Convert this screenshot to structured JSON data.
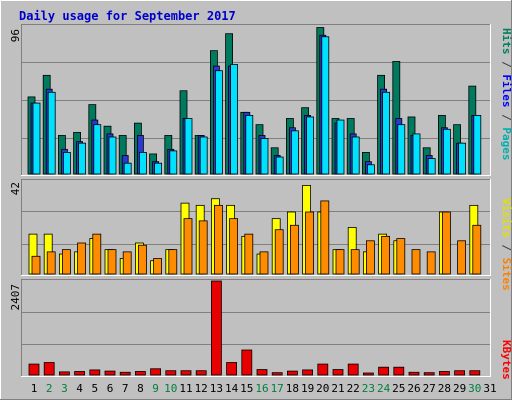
{
  "title": "Daily usage for September 2017",
  "colors": {
    "title": "#0000cc",
    "pages": "#00b0b0",
    "files": "#0000ff",
    "hits": "#008060",
    "sites": "#ff8000",
    "visits": "#e0e000",
    "kbytes": "#ff0000",
    "weekday_label": "#000000",
    "weekend_label": "#008040",
    "bar_hits": "#007a5e",
    "bar_files": "#2a3ad0",
    "bar_pages": "#00e0ff",
    "bar_visits": "#ffff00",
    "bar_sites": "#ff8c00",
    "bar_kbytes": "#e80000"
  },
  "chart_data": {
    "type": "bar",
    "categories": [
      "1",
      "2",
      "3",
      "4",
      "5",
      "6",
      "7",
      "8",
      "9",
      "10",
      "11",
      "12",
      "13",
      "14",
      "15",
      "16",
      "17",
      "18",
      "19",
      "20",
      "21",
      "22",
      "23",
      "24",
      "25",
      "26",
      "27",
      "28",
      "29",
      "30",
      "31"
    ],
    "weekend_days": [
      "2",
      "3",
      "9",
      "10",
      "16",
      "17",
      "23",
      "24",
      "30"
    ],
    "panels": [
      {
        "name": "usage",
        "max_label": "96",
        "ylim": [
          0,
          96
        ],
        "legend": [
          "Pages",
          "Files",
          "Hits"
        ],
        "legend_separator": " / ",
        "series": [
          {
            "name": "Hits",
            "values": [
              50,
              64,
              25,
              27,
              45,
              31,
              25,
              33,
              13,
              25,
              54,
              25,
              80,
              91,
              40,
              32,
              17,
              36,
              43,
              95,
              36,
              36,
              14,
              64,
              73,
              37,
              17,
              38,
              32,
              57
            ]
          },
          {
            "name": "Files",
            "values": [
              46,
              55,
              16,
              21,
              35,
              26,
              12,
              25,
              8,
              16,
              36,
              25,
              70,
              70,
              40,
              25,
              12,
              30,
              38,
              90,
              33,
              26,
              8,
              55,
              36,
              25,
              12,
              30,
              20,
              38
            ]
          },
          {
            "name": "Pages",
            "values": [
              46,
              53,
              14,
              20,
              32,
              24,
              7,
              14,
              7,
              15,
              36,
              24,
              67,
              71,
              38,
              23,
              11,
              28,
              37,
              89,
              35,
              24,
              6,
              53,
              32,
              26,
              10,
              29,
              20,
              38
            ]
          }
        ]
      },
      {
        "name": "visitors",
        "max_label": "42",
        "ylim": [
          0,
          42
        ],
        "legend": [
          "Sites",
          "Visits"
        ],
        "legend_separator": " / ",
        "series": [
          {
            "name": "Visits",
            "values": [
              18,
              18,
              9,
              10,
              16,
              11,
              7,
              14,
              6,
              11,
              32,
              31,
              34,
              31,
              17,
              9,
              25,
              28,
              40,
              28,
              11,
              21,
              10,
              18,
              15,
              0,
              0,
              28,
              0,
              31
            ]
          },
          {
            "name": "Sites",
            "values": [
              8,
              10,
              11,
              14,
              18,
              11,
              10,
              13,
              7,
              11,
              25,
              24,
              31,
              25,
              18,
              10,
              20,
              22,
              28,
              33,
              11,
              11,
              15,
              17,
              16,
              11,
              10,
              28,
              15,
              22
            ]
          }
        ]
      },
      {
        "name": "traffic",
        "max_label": "2407",
        "ylim": [
          0,
          2407
        ],
        "legend": [
          "KBytes"
        ],
        "legend_separator": "",
        "series": [
          {
            "name": "KBytes",
            "values": [
              280,
              320,
              80,
              90,
              130,
              100,
              70,
              90,
              160,
              110,
              110,
              110,
              2407,
              320,
              640,
              140,
              60,
              100,
              130,
              280,
              140,
              280,
              50,
              200,
              200,
              70,
              60,
              90,
              110,
              110
            ]
          }
        ]
      }
    ]
  }
}
